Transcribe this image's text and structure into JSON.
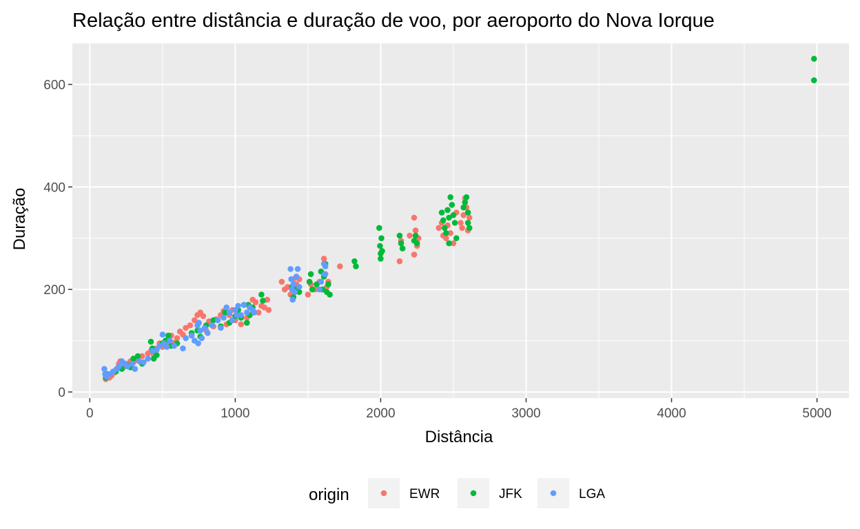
{
  "chart_data": {
    "type": "scatter",
    "title": "Relação entre distância e duração de voo, por aeroporto do Nova Iorque",
    "xlabel": "Distância",
    "ylabel": "Duração",
    "xlim": [
      -120,
      5220
    ],
    "ylim": [
      -12,
      680
    ],
    "x_ticks": [
      0,
      1000,
      2000,
      3000,
      4000,
      5000
    ],
    "x_tick_labels": [
      "0",
      "1000",
      "2000",
      "3000",
      "4000",
      "5000"
    ],
    "y_ticks": [
      0,
      200,
      400,
      600
    ],
    "y_tick_labels": [
      "0",
      "200",
      "400",
      "600"
    ],
    "grid": true,
    "legend": {
      "title": "origin",
      "position": "bottom"
    },
    "colors": {
      "EWR": "#F8766D",
      "JFK": "#00BA38",
      "LGA": "#619CFF",
      "panel": "#EBEBEB",
      "grid": "#FFFFFF"
    },
    "series": [
      {
        "name": "EWR",
        "points": [
          [
            110,
            25
          ],
          [
            120,
            30
          ],
          [
            135,
            28
          ],
          [
            150,
            32
          ],
          [
            170,
            38
          ],
          [
            185,
            45
          ],
          [
            200,
            55
          ],
          [
            210,
            60
          ],
          [
            230,
            48
          ],
          [
            250,
            55
          ],
          [
            280,
            60
          ],
          [
            300,
            58
          ],
          [
            330,
            62
          ],
          [
            360,
            70
          ],
          [
            400,
            75
          ],
          [
            420,
            80
          ],
          [
            440,
            72
          ],
          [
            460,
            85
          ],
          [
            480,
            95
          ],
          [
            500,
            88
          ],
          [
            520,
            100
          ],
          [
            540,
            92
          ],
          [
            560,
            110
          ],
          [
            580,
            96
          ],
          [
            600,
            105
          ],
          [
            620,
            118
          ],
          [
            640,
            112
          ],
          [
            660,
            125
          ],
          [
            690,
            130
          ],
          [
            720,
            140
          ],
          [
            740,
            150
          ],
          [
            760,
            155
          ],
          [
            780,
            148
          ],
          [
            800,
            120
          ],
          [
            820,
            138
          ],
          [
            850,
            128
          ],
          [
            870,
            142
          ],
          [
            900,
            150
          ],
          [
            920,
            158
          ],
          [
            940,
            132
          ],
          [
            960,
            150
          ],
          [
            980,
            160
          ],
          [
            1000,
            140
          ],
          [
            1020,
            150
          ],
          [
            1040,
            132
          ],
          [
            1060,
            170
          ],
          [
            1080,
            145
          ],
          [
            1100,
            165
          ],
          [
            1120,
            180
          ],
          [
            1140,
            175
          ],
          [
            1160,
            155
          ],
          [
            1180,
            168
          ],
          [
            1200,
            165
          ],
          [
            1220,
            180
          ],
          [
            1230,
            160
          ],
          [
            1320,
            215
          ],
          [
            1340,
            200
          ],
          [
            1360,
            205
          ],
          [
            1380,
            190
          ],
          [
            1400,
            220
          ],
          [
            1420,
            210
          ],
          [
            1440,
            220
          ],
          [
            1500,
            190
          ],
          [
            1520,
            210
          ],
          [
            1550,
            200
          ],
          [
            1580,
            215
          ],
          [
            1610,
            260
          ],
          [
            1620,
            230
          ],
          [
            1630,
            205
          ],
          [
            1640,
            215
          ],
          [
            1720,
            245
          ],
          [
            2130,
            255
          ],
          [
            2140,
            295
          ],
          [
            2200,
            305
          ],
          [
            2230,
            340
          ],
          [
            2230,
            268
          ],
          [
            2240,
            315
          ],
          [
            2250,
            285
          ],
          [
            2260,
            300
          ],
          [
            2400,
            320
          ],
          [
            2420,
            330
          ],
          [
            2430,
            305
          ],
          [
            2450,
            300
          ],
          [
            2460,
            325
          ],
          [
            2480,
            310
          ],
          [
            2500,
            290
          ],
          [
            2520,
            350
          ],
          [
            2550,
            330
          ],
          [
            2560,
            320
          ],
          [
            2570,
            345
          ],
          [
            2580,
            378
          ],
          [
            2590,
            360
          ],
          [
            2600,
            315
          ],
          [
            2610,
            340
          ]
        ]
      },
      {
        "name": "JFK",
        "points": [
          [
            110,
            28
          ],
          [
            120,
            35
          ],
          [
            180,
            40
          ],
          [
            220,
            45
          ],
          [
            260,
            52
          ],
          [
            280,
            48
          ],
          [
            300,
            65
          ],
          [
            330,
            70
          ],
          [
            360,
            55
          ],
          [
            420,
            98
          ],
          [
            430,
            85
          ],
          [
            440,
            65
          ],
          [
            460,
            72
          ],
          [
            500,
            95
          ],
          [
            520,
            100
          ],
          [
            540,
            110
          ],
          [
            560,
            90
          ],
          [
            600,
            95
          ],
          [
            700,
            115
          ],
          [
            740,
            120
          ],
          [
            760,
            108
          ],
          [
            800,
            130
          ],
          [
            850,
            140
          ],
          [
            900,
            128
          ],
          [
            930,
            155
          ],
          [
            960,
            135
          ],
          [
            1000,
            148
          ],
          [
            1020,
            160
          ],
          [
            1040,
            145
          ],
          [
            1080,
            135
          ],
          [
            1090,
            170
          ],
          [
            1100,
            150
          ],
          [
            1120,
            165
          ],
          [
            1180,
            190
          ],
          [
            1190,
            178
          ],
          [
            1390,
            205
          ],
          [
            1400,
            185
          ],
          [
            1420,
            200
          ],
          [
            1440,
            195
          ],
          [
            1510,
            215
          ],
          [
            1520,
            230
          ],
          [
            1530,
            200
          ],
          [
            1560,
            210
          ],
          [
            1590,
            235
          ],
          [
            1600,
            200
          ],
          [
            1610,
            225
          ],
          [
            1620,
            250
          ],
          [
            1630,
            195
          ],
          [
            1640,
            210
          ],
          [
            1650,
            190
          ],
          [
            1820,
            255
          ],
          [
            1830,
            245
          ],
          [
            1990,
            320
          ],
          [
            1995,
            285
          ],
          [
            2000,
            270
          ],
          [
            2000,
            260
          ],
          [
            2005,
            300
          ],
          [
            2010,
            275
          ],
          [
            2130,
            305
          ],
          [
            2140,
            290
          ],
          [
            2150,
            280
          ],
          [
            2230,
            295
          ],
          [
            2240,
            305
          ],
          [
            2250,
            290
          ],
          [
            2420,
            350
          ],
          [
            2430,
            335
          ],
          [
            2440,
            320
          ],
          [
            2450,
            310
          ],
          [
            2460,
            355
          ],
          [
            2470,
            340
          ],
          [
            2470,
            290
          ],
          [
            2480,
            380
          ],
          [
            2490,
            365
          ],
          [
            2500,
            345
          ],
          [
            2510,
            330
          ],
          [
            2520,
            300
          ],
          [
            2570,
            360
          ],
          [
            2580,
            370
          ],
          [
            2590,
            380
          ],
          [
            2600,
            350
          ],
          [
            2600,
            330
          ],
          [
            2610,
            320
          ],
          [
            4980,
            650
          ],
          [
            4980,
            608
          ]
        ]
      },
      {
        "name": "LGA",
        "points": [
          [
            100,
            45
          ],
          [
            105,
            35
          ],
          [
            115,
            30
          ],
          [
            140,
            35
          ],
          [
            160,
            40
          ],
          [
            185,
            45
          ],
          [
            200,
            50
          ],
          [
            220,
            60
          ],
          [
            240,
            55
          ],
          [
            260,
            50
          ],
          [
            290,
            55
          ],
          [
            310,
            45
          ],
          [
            340,
            60
          ],
          [
            370,
            58
          ],
          [
            400,
            65
          ],
          [
            430,
            80
          ],
          [
            460,
            82
          ],
          [
            480,
            90
          ],
          [
            500,
            112
          ],
          [
            510,
            95
          ],
          [
            530,
            88
          ],
          [
            550,
            100
          ],
          [
            580,
            90
          ],
          [
            640,
            85
          ],
          [
            660,
            105
          ],
          [
            700,
            110
          ],
          [
            720,
            100
          ],
          [
            740,
            130
          ],
          [
            745,
            95
          ],
          [
            750,
            135
          ],
          [
            760,
            120
          ],
          [
            770,
            105
          ],
          [
            790,
            125
          ],
          [
            810,
            115
          ],
          [
            840,
            130
          ],
          [
            880,
            140
          ],
          [
            900,
            125
          ],
          [
            920,
            145
          ],
          [
            940,
            165
          ],
          [
            960,
            155
          ],
          [
            980,
            140
          ],
          [
            1000,
            160
          ],
          [
            1010,
            150
          ],
          [
            1020,
            168
          ],
          [
            1040,
            150
          ],
          [
            1060,
            170
          ],
          [
            1080,
            155
          ],
          [
            1100,
            165
          ],
          [
            1120,
            160
          ],
          [
            1130,
            155
          ],
          [
            1380,
            240
          ],
          [
            1385,
            220
          ],
          [
            1390,
            200
          ],
          [
            1395,
            180
          ],
          [
            1400,
            210
          ],
          [
            1410,
            195
          ],
          [
            1420,
            225
          ],
          [
            1430,
            240
          ],
          [
            1440,
            205
          ],
          [
            1580,
            200
          ],
          [
            1590,
            215
          ],
          [
            1610,
            250
          ],
          [
            1615,
            230
          ],
          [
            1620,
            245
          ]
        ]
      }
    ]
  }
}
